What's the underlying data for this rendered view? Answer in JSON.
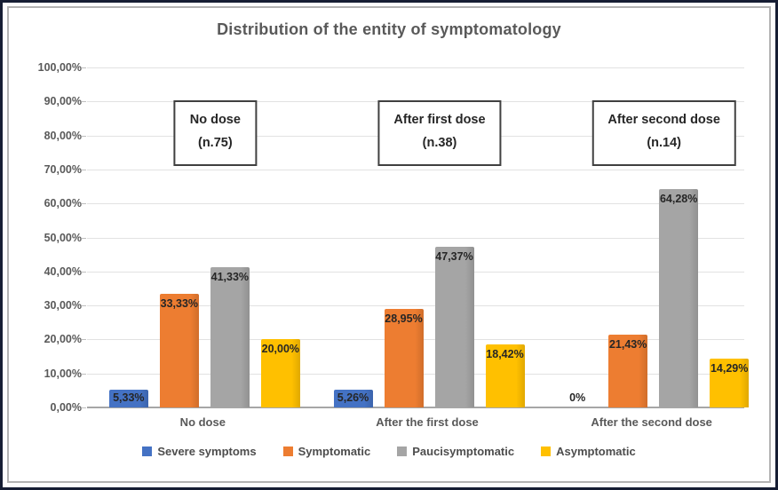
{
  "chart_data": {
    "type": "bar",
    "title": "Distribution of the entity of symptomatology",
    "categories": [
      "No dose",
      "After the first dose",
      "After the second dose"
    ],
    "annotation_boxes": [
      {
        "line1": "No dose",
        "line2": "(n.75)"
      },
      {
        "line1": "After first dose",
        "line2": "(n.38)"
      },
      {
        "line1": "After second dose",
        "line2": "(n.14)"
      }
    ],
    "series": [
      {
        "name": "Severe symptoms",
        "color": "#4472C4",
        "values": [
          5.33,
          5.26,
          0
        ],
        "labels": [
          "5,33%",
          "5,26%",
          "0%"
        ]
      },
      {
        "name": "Symptomatic",
        "color": "#ED7D31",
        "values": [
          33.33,
          28.95,
          21.43
        ],
        "labels": [
          "33,33%",
          "28,95%",
          "21,43%"
        ]
      },
      {
        "name": "Paucisymptomatic",
        "color": "#A5A5A5",
        "values": [
          41.33,
          47.37,
          64.28
        ],
        "labels": [
          "41,33%",
          "47,37%",
          "64,28%"
        ]
      },
      {
        "name": "Asymptomatic",
        "color": "#FFC000",
        "values": [
          20.0,
          18.42,
          14.29
        ],
        "labels": [
          "20,00%",
          "18,42%",
          "14,29%"
        ]
      }
    ],
    "y_axis": {
      "min": 0,
      "max": 100,
      "step": 10,
      "tick_labels": [
        "0,00%",
        "10,00%",
        "20,00%",
        "30,00%",
        "40,00%",
        "50,00%",
        "60,00%",
        "70,00%",
        "80,00%",
        "90,00%",
        "100,00%"
      ]
    },
    "grid": true,
    "legend_position": "bottom"
  }
}
